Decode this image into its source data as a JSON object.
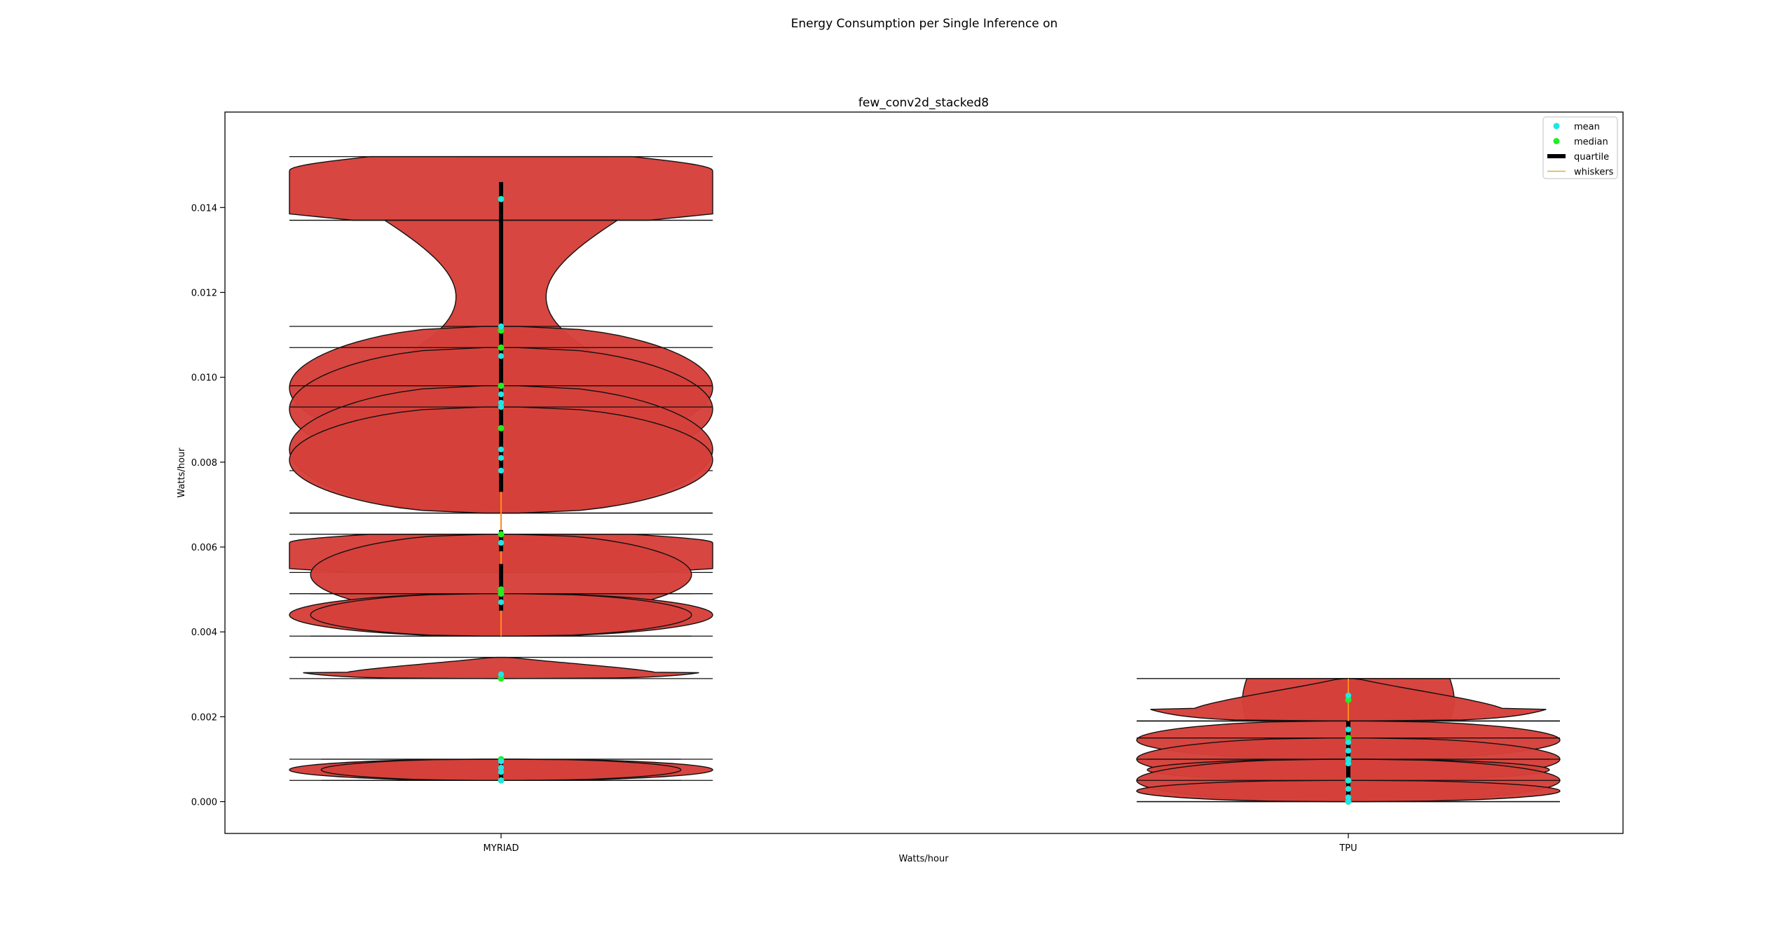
{
  "figure": {
    "suptitle": "Energy Consumption per Single Inference on",
    "subplot_title": "few_conv2d_stacked8"
  },
  "chart_data": {
    "type": "violin",
    "title": "few_conv2d_stacked8",
    "xlabel": "Watts/hour",
    "ylabel": "Watts/hour",
    "categories": [
      "MYRIAD",
      "TPU"
    ],
    "ylim": [
      -0.00075,
      0.01625
    ],
    "yticks": [
      0.0,
      0.002,
      0.004,
      0.006,
      0.008,
      0.01,
      0.012,
      0.014
    ],
    "ytick_labels": [
      "0.000",
      "0.002",
      "0.004",
      "0.006",
      "0.008",
      "0.010",
      "0.012",
      "0.014"
    ],
    "grid": false,
    "legend_position": "top-right",
    "legend": [
      {
        "label": "mean",
        "kind": "dot",
        "color": "#22e5e5"
      },
      {
        "label": "median",
        "kind": "dot",
        "color": "#22ee22"
      },
      {
        "label": "quartile",
        "kind": "thick-line",
        "color": "#000000"
      },
      {
        "label": "whiskers",
        "kind": "line",
        "color": "#d8b04a"
      }
    ],
    "colors": {
      "violin_fill": "#d6403a",
      "violin_edge": "#111111",
      "quartile": "#000000",
      "whisker": "#ff8c1a",
      "mean": "#22e5e5",
      "median": "#22ee22"
    },
    "series": [
      {
        "name": "MYRIAD",
        "violins": [
          {
            "min": 0.0137,
            "max": 0.0152,
            "shape": "cap",
            "rel_width": 1.0
          },
          {
            "min": 0.0093,
            "max": 0.0137,
            "shape": "hourglass",
            "rel_width": 1.0
          },
          {
            "min": 0.0083,
            "max": 0.0112,
            "shape": "bulge",
            "rel_width": 1.0
          },
          {
            "min": 0.0078,
            "max": 0.0107,
            "shape": "bulge",
            "rel_width": 1.0
          },
          {
            "min": 0.0068,
            "max": 0.0098,
            "shape": "bulge",
            "rel_width": 1.0
          },
          {
            "min": 0.0068,
            "max": 0.0093,
            "shape": "bulge",
            "rel_width": 1.0
          },
          {
            "min": 0.0054,
            "max": 0.0063,
            "shape": "cap",
            "rel_width": 1.0
          },
          {
            "min": 0.0044,
            "max": 0.0063,
            "shape": "bulge",
            "rel_width": 0.9
          },
          {
            "min": 0.0039,
            "max": 0.0049,
            "shape": "bulge",
            "rel_width": 1.0
          },
          {
            "min": 0.0039,
            "max": 0.0049,
            "shape": "bulge",
            "rel_width": 0.9
          },
          {
            "min": 0.0029,
            "max": 0.0034,
            "shape": "spike",
            "rel_width": 1.0
          },
          {
            "min": 0.0005,
            "max": 0.001,
            "shape": "bulge",
            "rel_width": 1.0
          },
          {
            "min": 0.0005,
            "max": 0.001,
            "shape": "bulge",
            "rel_width": 0.85
          }
        ],
        "quartile_segments": [
          [
            0.0073,
            0.0146
          ],
          [
            0.0059,
            0.0064
          ],
          [
            0.0045,
            0.0056
          ],
          [
            0.00055,
            0.00095
          ]
        ],
        "whisker_segments": [
          [
            0.0039,
            0.0146
          ]
        ],
        "means": [
          0.0142,
          0.0112,
          0.0105,
          0.0096,
          0.0094,
          0.0093,
          0.0083,
          0.0081,
          0.0078,
          0.0061,
          0.0047,
          0.003,
          0.00095,
          0.0008,
          0.0007,
          0.0005
        ],
        "medians": [
          0.0142,
          0.0111,
          0.0107,
          0.0098,
          0.0088,
          0.0063,
          0.005,
          0.0049,
          0.0029,
          0.001,
          0.0005
        ]
      },
      {
        "name": "TPU",
        "violins": [
          {
            "min": 0.0019,
            "max": 0.0029,
            "shape": "wide-bulge",
            "rel_width": 1.0
          },
          {
            "min": 0.0019,
            "max": 0.0029,
            "shape": "spike",
            "rel_width": 1.0
          },
          {
            "min": 0.001,
            "max": 0.0019,
            "shape": "bulge",
            "rel_width": 1.0
          },
          {
            "min": 0.0005,
            "max": 0.0015,
            "shape": "bulge",
            "rel_width": 1.0
          },
          {
            "min": 0.0005,
            "max": 0.001,
            "shape": "bulge",
            "rel_width": 0.95
          },
          {
            "min": 0.0,
            "max": 0.001,
            "shape": "bulge",
            "rel_width": 1.0
          },
          {
            "min": 0.0,
            "max": 0.0005,
            "shape": "bulge",
            "rel_width": 1.0
          }
        ],
        "quartile_segments": [
          [
            0.0001,
            0.0019
          ]
        ],
        "whisker_segments": [
          [
            0.0,
            0.0029
          ]
        ],
        "means": [
          0.0025,
          0.0017,
          0.0014,
          0.0012,
          0.001,
          0.0009,
          0.0005,
          0.0003,
          0.0001,
          0.0
        ],
        "medians": [
          0.0024,
          0.0015,
          0.001,
          0.0005,
          0.0
        ]
      }
    ]
  }
}
